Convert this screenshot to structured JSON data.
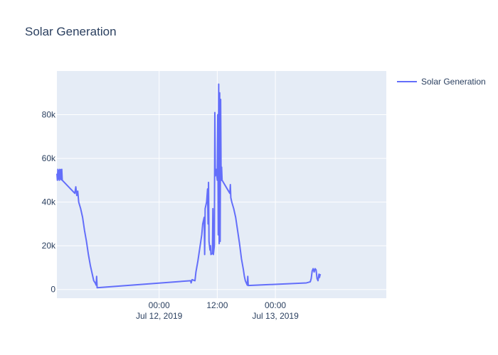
{
  "chart_data": {
    "type": "line",
    "title": "Solar Generation",
    "xlabel": "",
    "ylabel": "",
    "colors": {
      "line": "#636efa",
      "plot_bg": "#e5ecf6",
      "text": "#2a3f5f"
    },
    "grid": true,
    "legend_position": "top-right",
    "xlim": [
      "2019-07-11T02:54",
      "2019-07-13T22:54"
    ],
    "ylim": [
      -4000,
      100000
    ],
    "x_ticks": [
      {
        "value": "2019-07-12T00:00",
        "label": "00:00",
        "sublabel": "Jul 12, 2019"
      },
      {
        "value": "2019-07-12T12:00",
        "label": "12:00",
        "sublabel": ""
      },
      {
        "value": "2019-07-13T00:00",
        "label": "00:00",
        "sublabel": "Jul 13, 2019"
      }
    ],
    "y_ticks": [
      {
        "value": 0,
        "label": "0"
      },
      {
        "value": 20000,
        "label": "20k"
      },
      {
        "value": 40000,
        "label": "40k"
      },
      {
        "value": 60000,
        "label": "60k"
      },
      {
        "value": 80000,
        "label": "80k"
      }
    ],
    "series": [
      {
        "name": "Solar Generation",
        "points": [
          [
            "2019-07-11T02:54",
            53000
          ],
          [
            "2019-07-11T03:00",
            50000
          ],
          [
            "2019-07-11T03:06",
            55000
          ],
          [
            "2019-07-11T03:12",
            50500
          ],
          [
            "2019-07-11T03:18",
            54500
          ],
          [
            "2019-07-11T03:24",
            50000
          ],
          [
            "2019-07-11T03:30",
            55000
          ],
          [
            "2019-07-11T03:36",
            50500
          ],
          [
            "2019-07-11T03:42",
            54800
          ],
          [
            "2019-07-11T03:48",
            50200
          ],
          [
            "2019-07-11T03:54",
            55000
          ],
          [
            "2019-07-11T04:00",
            50000
          ],
          [
            "2019-07-11T06:36",
            44000
          ],
          [
            "2019-07-11T06:48",
            47000
          ],
          [
            "2019-07-11T07:00",
            43000
          ],
          [
            "2019-07-11T07:12",
            45000
          ],
          [
            "2019-07-11T07:24",
            40000
          ],
          [
            "2019-07-11T07:48",
            37000
          ],
          [
            "2019-07-11T08:12",
            33000
          ],
          [
            "2019-07-11T08:36",
            27000
          ],
          [
            "2019-07-11T09:00",
            22000
          ],
          [
            "2019-07-11T09:24",
            16000
          ],
          [
            "2019-07-11T09:48",
            11000
          ],
          [
            "2019-07-11T10:12",
            7000
          ],
          [
            "2019-07-11T10:30",
            4000
          ],
          [
            "2019-07-11T10:48",
            3000
          ],
          [
            "2019-07-11T11:00",
            2000
          ],
          [
            "2019-07-11T11:06",
            6000
          ],
          [
            "2019-07-11T11:12",
            800
          ],
          [
            "2019-07-12T06:30",
            4000
          ],
          [
            "2019-07-12T06:36",
            3000
          ],
          [
            "2019-07-12T06:48",
            4500
          ],
          [
            "2019-07-12T07:24",
            4000
          ],
          [
            "2019-07-12T07:36",
            8000
          ],
          [
            "2019-07-12T08:00",
            13000
          ],
          [
            "2019-07-12T08:24",
            19000
          ],
          [
            "2019-07-12T08:48",
            25000
          ],
          [
            "2019-07-12T09:00",
            30000
          ],
          [
            "2019-07-12T09:18",
            33000
          ],
          [
            "2019-07-12T09:24",
            16000
          ],
          [
            "2019-07-12T09:30",
            37000
          ],
          [
            "2019-07-12T09:48",
            40000
          ],
          [
            "2019-07-12T10:00",
            46000
          ],
          [
            "2019-07-12T10:06",
            30000
          ],
          [
            "2019-07-12T10:12",
            49000
          ],
          [
            "2019-07-12T10:18",
            22000
          ],
          [
            "2019-07-12T10:30",
            18000
          ],
          [
            "2019-07-12T10:36",
            20000
          ],
          [
            "2019-07-12T10:42",
            16000
          ],
          [
            "2019-07-12T11:00",
            16500
          ],
          [
            "2019-07-12T11:06",
            37000
          ],
          [
            "2019-07-12T11:12",
            16000
          ],
          [
            "2019-07-12T11:24",
            20000
          ],
          [
            "2019-07-12T11:30",
            81000
          ],
          [
            "2019-07-12T11:36",
            52000
          ],
          [
            "2019-07-12T11:48",
            55000
          ],
          [
            "2019-07-12T12:00",
            50000
          ],
          [
            "2019-07-12T12:06",
            80000
          ],
          [
            "2019-07-12T12:12",
            25000
          ],
          [
            "2019-07-12T12:18",
            94000
          ],
          [
            "2019-07-12T12:24",
            21000
          ],
          [
            "2019-07-12T12:30",
            90000
          ],
          [
            "2019-07-12T12:36",
            22000
          ],
          [
            "2019-07-12T12:42",
            87000
          ],
          [
            "2019-07-12T12:48",
            50000
          ],
          [
            "2019-07-12T12:54",
            56000
          ],
          [
            "2019-07-12T13:00",
            50000
          ],
          [
            "2019-07-12T14:36",
            44000
          ],
          [
            "2019-07-12T14:42",
            48000
          ],
          [
            "2019-07-12T14:48",
            42000
          ],
          [
            "2019-07-12T15:00",
            40000
          ],
          [
            "2019-07-12T15:24",
            37000
          ],
          [
            "2019-07-12T15:48",
            33000
          ],
          [
            "2019-07-12T16:12",
            27000
          ],
          [
            "2019-07-12T16:36",
            21000
          ],
          [
            "2019-07-12T17:00",
            14000
          ],
          [
            "2019-07-12T17:24",
            9000
          ],
          [
            "2019-07-12T17:36",
            6000
          ],
          [
            "2019-07-12T17:48",
            4000
          ],
          [
            "2019-07-12T18:00",
            3000
          ],
          [
            "2019-07-12T18:12",
            2000
          ],
          [
            "2019-07-12T18:18",
            6000
          ],
          [
            "2019-07-12T18:24",
            1800
          ],
          [
            "2019-07-13T06:24",
            3000
          ],
          [
            "2019-07-13T07:12",
            3500
          ],
          [
            "2019-07-13T07:24",
            5000
          ],
          [
            "2019-07-13T07:36",
            8500
          ],
          [
            "2019-07-13T07:48",
            9500
          ],
          [
            "2019-07-13T08:00",
            8000
          ],
          [
            "2019-07-13T08:12",
            9500
          ],
          [
            "2019-07-13T08:24",
            9000
          ],
          [
            "2019-07-13T08:36",
            5000
          ],
          [
            "2019-07-13T08:48",
            4000
          ],
          [
            "2019-07-13T09:00",
            7000
          ],
          [
            "2019-07-13T09:06",
            5500
          ],
          [
            "2019-07-13T09:12",
            6500
          ],
          [
            "2019-07-13T09:18",
            7000
          ]
        ]
      }
    ]
  }
}
